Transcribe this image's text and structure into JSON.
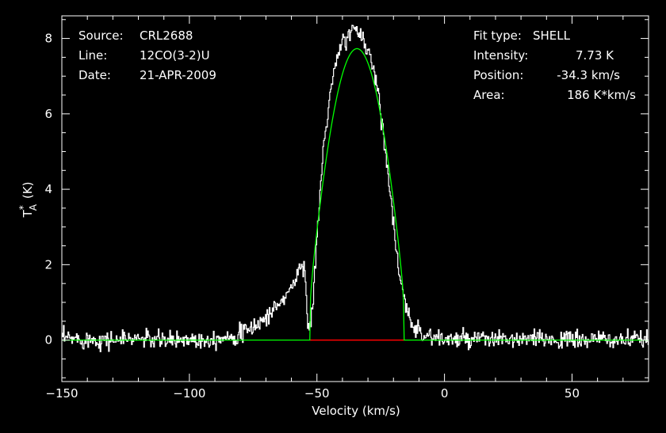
{
  "info_left": [
    {
      "key": "Source:",
      "value": "CRL2688"
    },
    {
      "key": "Line:",
      "value": "12CO(3-2)U"
    },
    {
      "key": "Date:",
      "value": "21-APR-2009"
    }
  ],
  "info_right": [
    {
      "key": "Fit type:",
      "value": "SHELL"
    },
    {
      "key": "Intensity:",
      "value": "7.73 K"
    },
    {
      "key": "Position:",
      "value": "-34.3 km/s"
    },
    {
      "key": "Area:",
      "value": "186 K*km/s"
    }
  ],
  "chart_data": {
    "type": "line",
    "xlabel": "Velocity (km/s)",
    "ylabel": {
      "base": "T",
      "sup": "*",
      "sub": "A",
      "unit": "(K)"
    },
    "xlim": [
      -150,
      80
    ],
    "ylim": [
      -1.1,
      8.6
    ],
    "xticks": [
      -150,
      -100,
      -50,
      0,
      50
    ],
    "yticks": [
      0,
      2,
      4,
      6,
      8
    ],
    "grid": false,
    "colors": {
      "background": "#000000",
      "axes": "#ffffff",
      "spectrum": "#ffffff",
      "fit": "#00ff00",
      "fit_baseline": "#ff0000"
    },
    "series": [
      {
        "kind": "spectrum",
        "x": [
          -150,
          -140,
          -130,
          -120,
          -110,
          -100,
          -95,
          -90,
          -85,
          -80,
          -77,
          -74,
          -71,
          -68,
          -65,
          -62,
          -59,
          -57,
          -56,
          -55,
          -54.5,
          -54,
          -53,
          -52,
          -50,
          -48,
          -46,
          -44,
          -42,
          -40,
          -38,
          -36,
          -35,
          -34,
          -33,
          -32,
          -30,
          -28,
          -26,
          -24,
          -22,
          -20,
          -18,
          -16,
          -14,
          -12,
          -10,
          -8,
          -5,
          0,
          10,
          20,
          30,
          40,
          50,
          60,
          70,
          80
        ],
        "y": [
          0.05,
          0.02,
          0.0,
          0.05,
          -0.02,
          0.03,
          0.0,
          0.05,
          0.1,
          0.15,
          0.25,
          0.4,
          0.55,
          0.75,
          0.95,
          1.2,
          1.55,
          1.85,
          2.0,
          2.1,
          1.5,
          0.55,
          0.3,
          0.7,
          2.8,
          4.8,
          6.0,
          6.9,
          7.5,
          7.9,
          8.1,
          8.2,
          8.2,
          8.15,
          8.1,
          8.0,
          7.7,
          7.2,
          6.5,
          5.5,
          4.3,
          3.0,
          1.8,
          1.0,
          0.6,
          0.4,
          0.25,
          0.15,
          0.08,
          0.02,
          0.0,
          0.02,
          0.0,
          0.03,
          0.0,
          0.02,
          0.0,
          0.0
        ]
      },
      {
        "kind": "fit",
        "type": "SHELL",
        "center": -34.3,
        "peak": 7.73,
        "halfwidth": 18.5,
        "horn": -0.55,
        "x": [
          -150,
          -52.8,
          -15.8,
          80
        ],
        "y": [
          0,
          0,
          0,
          0
        ]
      }
    ]
  }
}
